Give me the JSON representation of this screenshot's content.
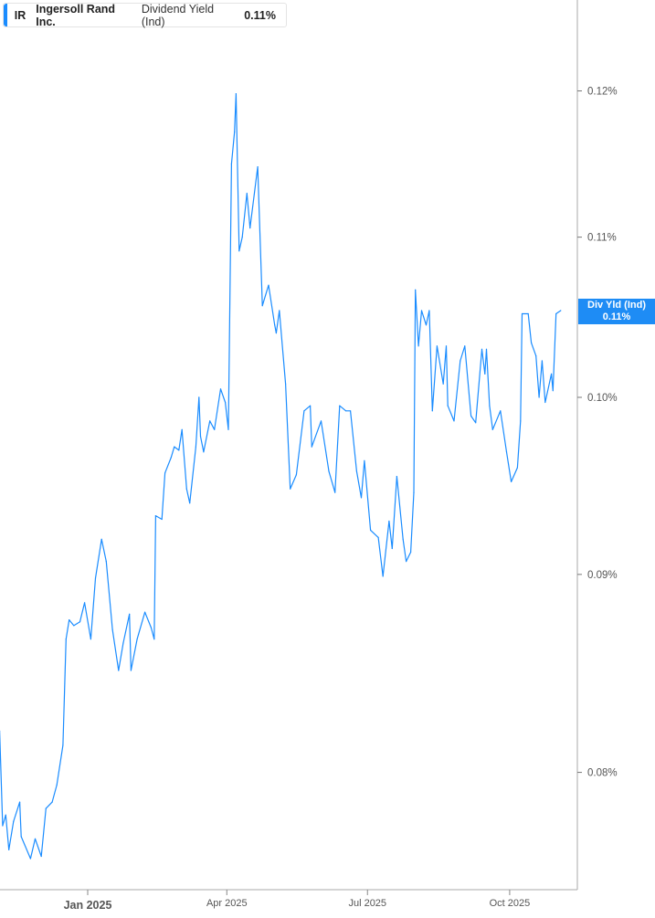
{
  "legend": {
    "ticker": "IR",
    "company": "Ingersoll Rand Inc.",
    "metric": "Dividend Yield (Ind)",
    "value": "0.11%"
  },
  "current_label": {
    "title": "Div Yld (Ind)",
    "value": "0.11%"
  },
  "colors": {
    "line": "#1a8cff",
    "label_bg": "#1e8cf5"
  },
  "chart_data": {
    "type": "line",
    "title": "",
    "xlabel": "",
    "ylabel": "",
    "y_scale": "log",
    "ylim": [
      0.0746,
      0.1267
    ],
    "y_unit": "%",
    "y_ticks": [
      0.08,
      0.09,
      0.1,
      0.11,
      0.12
    ],
    "y_tick_labels": [
      "0.08%",
      "0.09%",
      "0.10%",
      "0.11%",
      "0.12%"
    ],
    "x_ticks": [
      "2025-01-01",
      "2025-04-01",
      "2025-07-01",
      "2025-10-01"
    ],
    "x_tick_labels": [
      "Jan 2025",
      "Apr 2025",
      "Jul 2025",
      "Oct 2025"
    ],
    "xlim": [
      "2024-11-05",
      "2025-11-14"
    ],
    "grid": false,
    "series": [
      {
        "points": [
          [
            "2024-11-05",
            0.082
          ],
          [
            "2024-11-07",
            0.0775
          ],
          [
            "2024-11-09",
            0.078
          ],
          [
            "2024-11-11",
            0.0764
          ],
          [
            "2024-11-14",
            0.0777
          ],
          [
            "2024-11-18",
            0.0786
          ],
          [
            "2024-11-19",
            0.077
          ],
          [
            "2024-11-25",
            0.076
          ],
          [
            "2024-11-28",
            0.0769
          ],
          [
            "2024-12-02",
            0.0761
          ],
          [
            "2024-12-05",
            0.0783
          ],
          [
            "2024-12-09",
            0.0786
          ],
          [
            "2024-12-12",
            0.0794
          ],
          [
            "2024-12-16",
            0.0813
          ],
          [
            "2024-12-18",
            0.0866
          ],
          [
            "2024-12-20",
            0.0876
          ],
          [
            "2024-12-23",
            0.0873
          ],
          [
            "2024-12-27",
            0.0875
          ],
          [
            "2024-12-30",
            0.0885
          ],
          [
            "2025-01-03",
            0.0866
          ],
          [
            "2025-01-06",
            0.0898
          ],
          [
            "2025-01-10",
            0.0919
          ],
          [
            "2025-01-13",
            0.0907
          ],
          [
            "2025-01-17",
            0.0871
          ],
          [
            "2025-01-21",
            0.085
          ],
          [
            "2025-01-24",
            0.0864
          ],
          [
            "2025-01-28",
            0.0879
          ],
          [
            "2025-01-29",
            0.085
          ],
          [
            "2025-02-02",
            0.0866
          ],
          [
            "2025-02-07",
            0.088
          ],
          [
            "2025-02-11",
            0.0872
          ],
          [
            "2025-02-13",
            0.0866
          ],
          [
            "2025-02-14",
            0.0932
          ],
          [
            "2025-02-18",
            0.093
          ],
          [
            "2025-02-20",
            0.0956
          ],
          [
            "2025-02-24",
            0.0965
          ],
          [
            "2025-02-26",
            0.0971
          ],
          [
            "2025-03-01",
            0.0969
          ],
          [
            "2025-03-03",
            0.0981
          ],
          [
            "2025-03-06",
            0.0947
          ],
          [
            "2025-03-08",
            0.0939
          ],
          [
            "2025-03-12",
            0.0971
          ],
          [
            "2025-03-14",
            0.1
          ],
          [
            "2025-03-15",
            0.0977
          ],
          [
            "2025-03-17",
            0.0968
          ],
          [
            "2025-03-21",
            0.0986
          ],
          [
            "2025-03-24",
            0.0981
          ],
          [
            "2025-03-28",
            0.1005
          ],
          [
            "2025-03-31",
            0.0997
          ],
          [
            "2025-04-02",
            0.0981
          ],
          [
            "2025-04-04",
            0.1149
          ],
          [
            "2025-04-06",
            0.1171
          ],
          [
            "2025-04-07",
            0.1198
          ],
          [
            "2025-04-09",
            0.1091
          ],
          [
            "2025-04-11",
            0.11
          ],
          [
            "2025-04-14",
            0.1129
          ],
          [
            "2025-04-16",
            0.1106
          ],
          [
            "2025-04-21",
            0.1147
          ],
          [
            "2025-04-24",
            0.1056
          ],
          [
            "2025-04-28",
            0.1069
          ],
          [
            "2025-05-02",
            0.1044
          ],
          [
            "2025-05-03",
            0.1039
          ],
          [
            "2025-05-05",
            0.1053
          ],
          [
            "2025-05-09",
            0.1008
          ],
          [
            "2025-05-12",
            0.0947
          ],
          [
            "2025-05-16",
            0.0955
          ],
          [
            "2025-05-21",
            0.0992
          ],
          [
            "2025-05-25",
            0.0995
          ],
          [
            "2025-05-26",
            0.0971
          ],
          [
            "2025-06-01",
            0.0986
          ],
          [
            "2025-06-06",
            0.0957
          ],
          [
            "2025-06-10",
            0.0945
          ],
          [
            "2025-06-13",
            0.0995
          ],
          [
            "2025-06-17",
            0.0992
          ],
          [
            "2025-06-20",
            0.0992
          ],
          [
            "2025-06-24",
            0.0957
          ],
          [
            "2025-06-27",
            0.0942
          ],
          [
            "2025-06-29",
            0.0963
          ],
          [
            "2025-07-03",
            0.0924
          ],
          [
            "2025-07-08",
            0.092
          ],
          [
            "2025-07-11",
            0.0899
          ],
          [
            "2025-07-15",
            0.0929
          ],
          [
            "2025-07-17",
            0.0914
          ],
          [
            "2025-07-20",
            0.0954
          ],
          [
            "2025-07-24",
            0.0919
          ],
          [
            "2025-07-26",
            0.0907
          ],
          [
            "2025-07-29",
            0.0912
          ],
          [
            "2025-07-31",
            0.0945
          ],
          [
            "2025-08-01",
            0.1066
          ],
          [
            "2025-08-03",
            0.1031
          ],
          [
            "2025-08-05",
            0.1053
          ],
          [
            "2025-08-08",
            0.1044
          ],
          [
            "2025-08-10",
            0.1053
          ],
          [
            "2025-08-12",
            0.0992
          ],
          [
            "2025-08-15",
            0.1031
          ],
          [
            "2025-08-19",
            0.1008
          ],
          [
            "2025-08-21",
            0.1031
          ],
          [
            "2025-08-22",
            0.0995
          ],
          [
            "2025-08-26",
            0.0986
          ],
          [
            "2025-08-30",
            0.1022
          ],
          [
            "2025-09-02",
            0.1031
          ],
          [
            "2025-09-06",
            0.0989
          ],
          [
            "2025-09-09",
            0.0985
          ],
          [
            "2025-09-13",
            0.1029
          ],
          [
            "2025-09-15",
            0.1014
          ],
          [
            "2025-09-16",
            0.1029
          ],
          [
            "2025-09-18",
            0.0995
          ],
          [
            "2025-09-20",
            0.0981
          ],
          [
            "2025-09-25",
            0.0992
          ],
          [
            "2025-09-29",
            0.0968
          ],
          [
            "2025-10-02",
            0.0951
          ],
          [
            "2025-10-06",
            0.0959
          ],
          [
            "2025-10-08",
            0.0986
          ],
          [
            "2025-10-09",
            0.1051
          ],
          [
            "2025-10-13",
            0.1051
          ],
          [
            "2025-10-15",
            0.1033
          ],
          [
            "2025-10-18",
            0.1025
          ],
          [
            "2025-10-20",
            0.1
          ],
          [
            "2025-10-22",
            0.1022
          ],
          [
            "2025-10-24",
            0.0997
          ],
          [
            "2025-10-28",
            0.1014
          ],
          [
            "2025-10-29",
            0.1004
          ],
          [
            "2025-10-31",
            0.1051
          ],
          [
            "2025-11-03",
            0.1053
          ]
        ]
      }
    ]
  }
}
